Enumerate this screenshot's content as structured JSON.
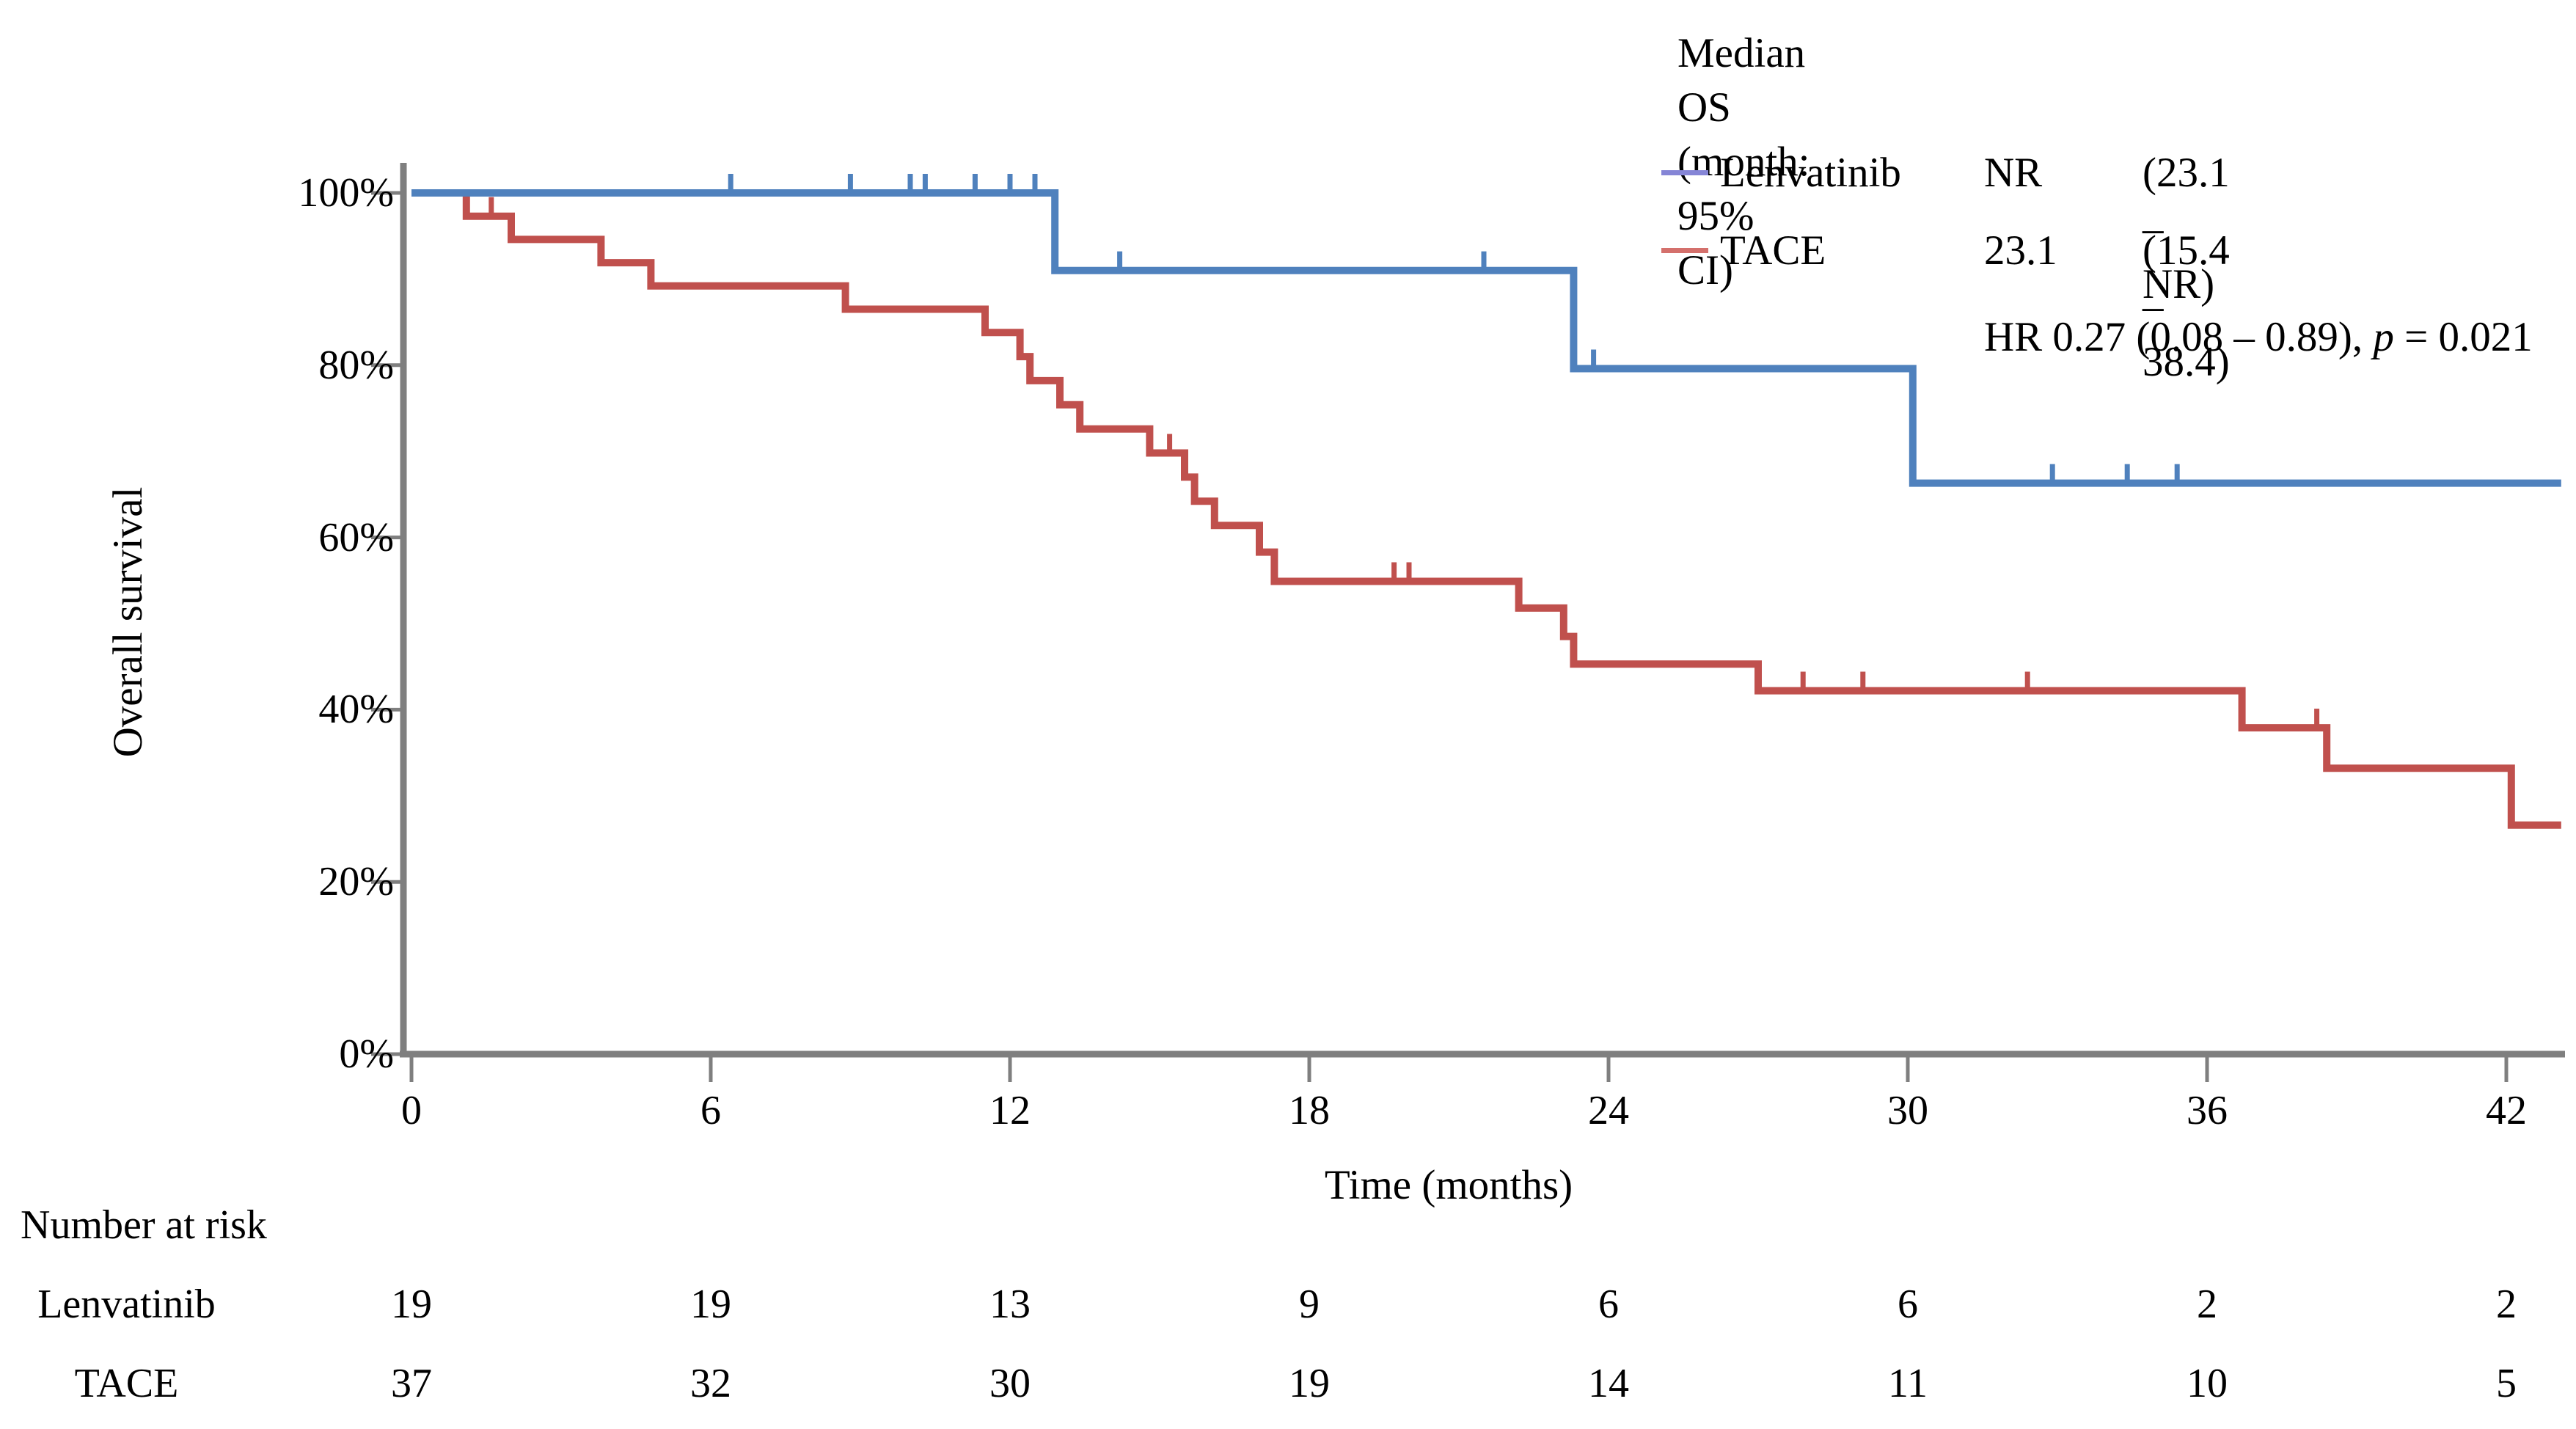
{
  "chart_data": {
    "type": "line",
    "subtype": "kaplan-meier-step",
    "xlabel": "Time (months)",
    "ylabel": "Overall survival",
    "x_ticks": [
      0,
      6,
      12,
      18,
      24,
      30,
      36,
      42
    ],
    "y_ticks_pct": [
      0,
      20,
      40,
      60,
      80,
      100
    ],
    "y_tick_labels": [
      "0%",
      "20%",
      "40%",
      "60%",
      "80%",
      "100%"
    ],
    "xlim_months": [
      0,
      43.1
    ],
    "ylim_pct": [
      0,
      100
    ],
    "grid": false,
    "legend_position": "top-right",
    "axis_color": "#7f7f7f",
    "series": [
      {
        "name": "TACE",
        "color": "#C0504D",
        "steps_time_pct": [
          [
            0,
            100
          ],
          [
            1.1,
            97.3
          ],
          [
            2.0,
            94.6
          ],
          [
            3.8,
            91.9
          ],
          [
            4.8,
            89.2
          ],
          [
            8.7,
            86.5
          ],
          [
            11.5,
            83.8
          ],
          [
            12.2,
            81.0
          ],
          [
            12.4,
            78.2
          ],
          [
            13.0,
            75.4
          ],
          [
            13.4,
            72.6
          ],
          [
            14.8,
            69.8
          ],
          [
            15.5,
            67.0
          ],
          [
            15.7,
            64.2
          ],
          [
            16.1,
            61.4
          ],
          [
            17.0,
            58.3
          ],
          [
            17.3,
            54.9
          ],
          [
            22.2,
            51.8
          ],
          [
            23.1,
            48.5
          ],
          [
            23.3,
            45.3
          ],
          [
            27.0,
            42.2
          ],
          [
            36.7,
            37.9
          ],
          [
            38.4,
            33.2
          ],
          [
            42.1,
            26.6
          ]
        ],
        "end_time": 43.1,
        "censors_time_pct": [
          [
            1.6,
            97.3
          ],
          [
            15.2,
            69.8
          ],
          [
            19.7,
            54.9
          ],
          [
            20.0,
            54.9
          ],
          [
            27.9,
            42.2
          ],
          [
            29.1,
            42.2
          ],
          [
            32.4,
            42.2
          ],
          [
            38.2,
            37.9
          ]
        ]
      },
      {
        "name": "Lenvatinib",
        "color": "#4F81BD",
        "steps_time_pct": [
          [
            0,
            100
          ],
          [
            12.9,
            91.0
          ],
          [
            23.3,
            79.6
          ],
          [
            30.1,
            66.3
          ]
        ],
        "end_time": 43.1,
        "censors_time_pct": [
          [
            6.4,
            100
          ],
          [
            8.8,
            100
          ],
          [
            10.0,
            100
          ],
          [
            10.3,
            100
          ],
          [
            11.3,
            100
          ],
          [
            12.0,
            100
          ],
          [
            12.5,
            100
          ],
          [
            14.2,
            91.0
          ],
          [
            21.5,
            91.0
          ],
          [
            23.7,
            79.6
          ],
          [
            32.9,
            66.3
          ],
          [
            34.4,
            66.3
          ],
          [
            35.4,
            66.3
          ]
        ]
      }
    ],
    "legend": {
      "title": "Median OS (month: 95% CI)",
      "rows": [
        {
          "name": "Lenvatinib",
          "median": "NR",
          "ci": "(23.1 – NR)"
        },
        {
          "name": "TACE",
          "median": "23.1",
          "ci": "(15.4 – 38.4)"
        }
      ],
      "hr": {
        "prefix": "HR 0.27 (0.08 – 0.89), ",
        "p": "p",
        "suffix": " = 0.021"
      }
    },
    "risk_table": {
      "header": "Number at risk",
      "time_points": [
        0,
        6,
        12,
        18,
        24,
        30,
        36,
        42
      ],
      "rows": [
        {
          "name": "Lenvatinib",
          "values": [
            19,
            19,
            13,
            9,
            6,
            6,
            2,
            2
          ]
        },
        {
          "name": "TACE",
          "values": [
            37,
            32,
            30,
            19,
            14,
            11,
            10,
            5
          ]
        }
      ]
    }
  }
}
